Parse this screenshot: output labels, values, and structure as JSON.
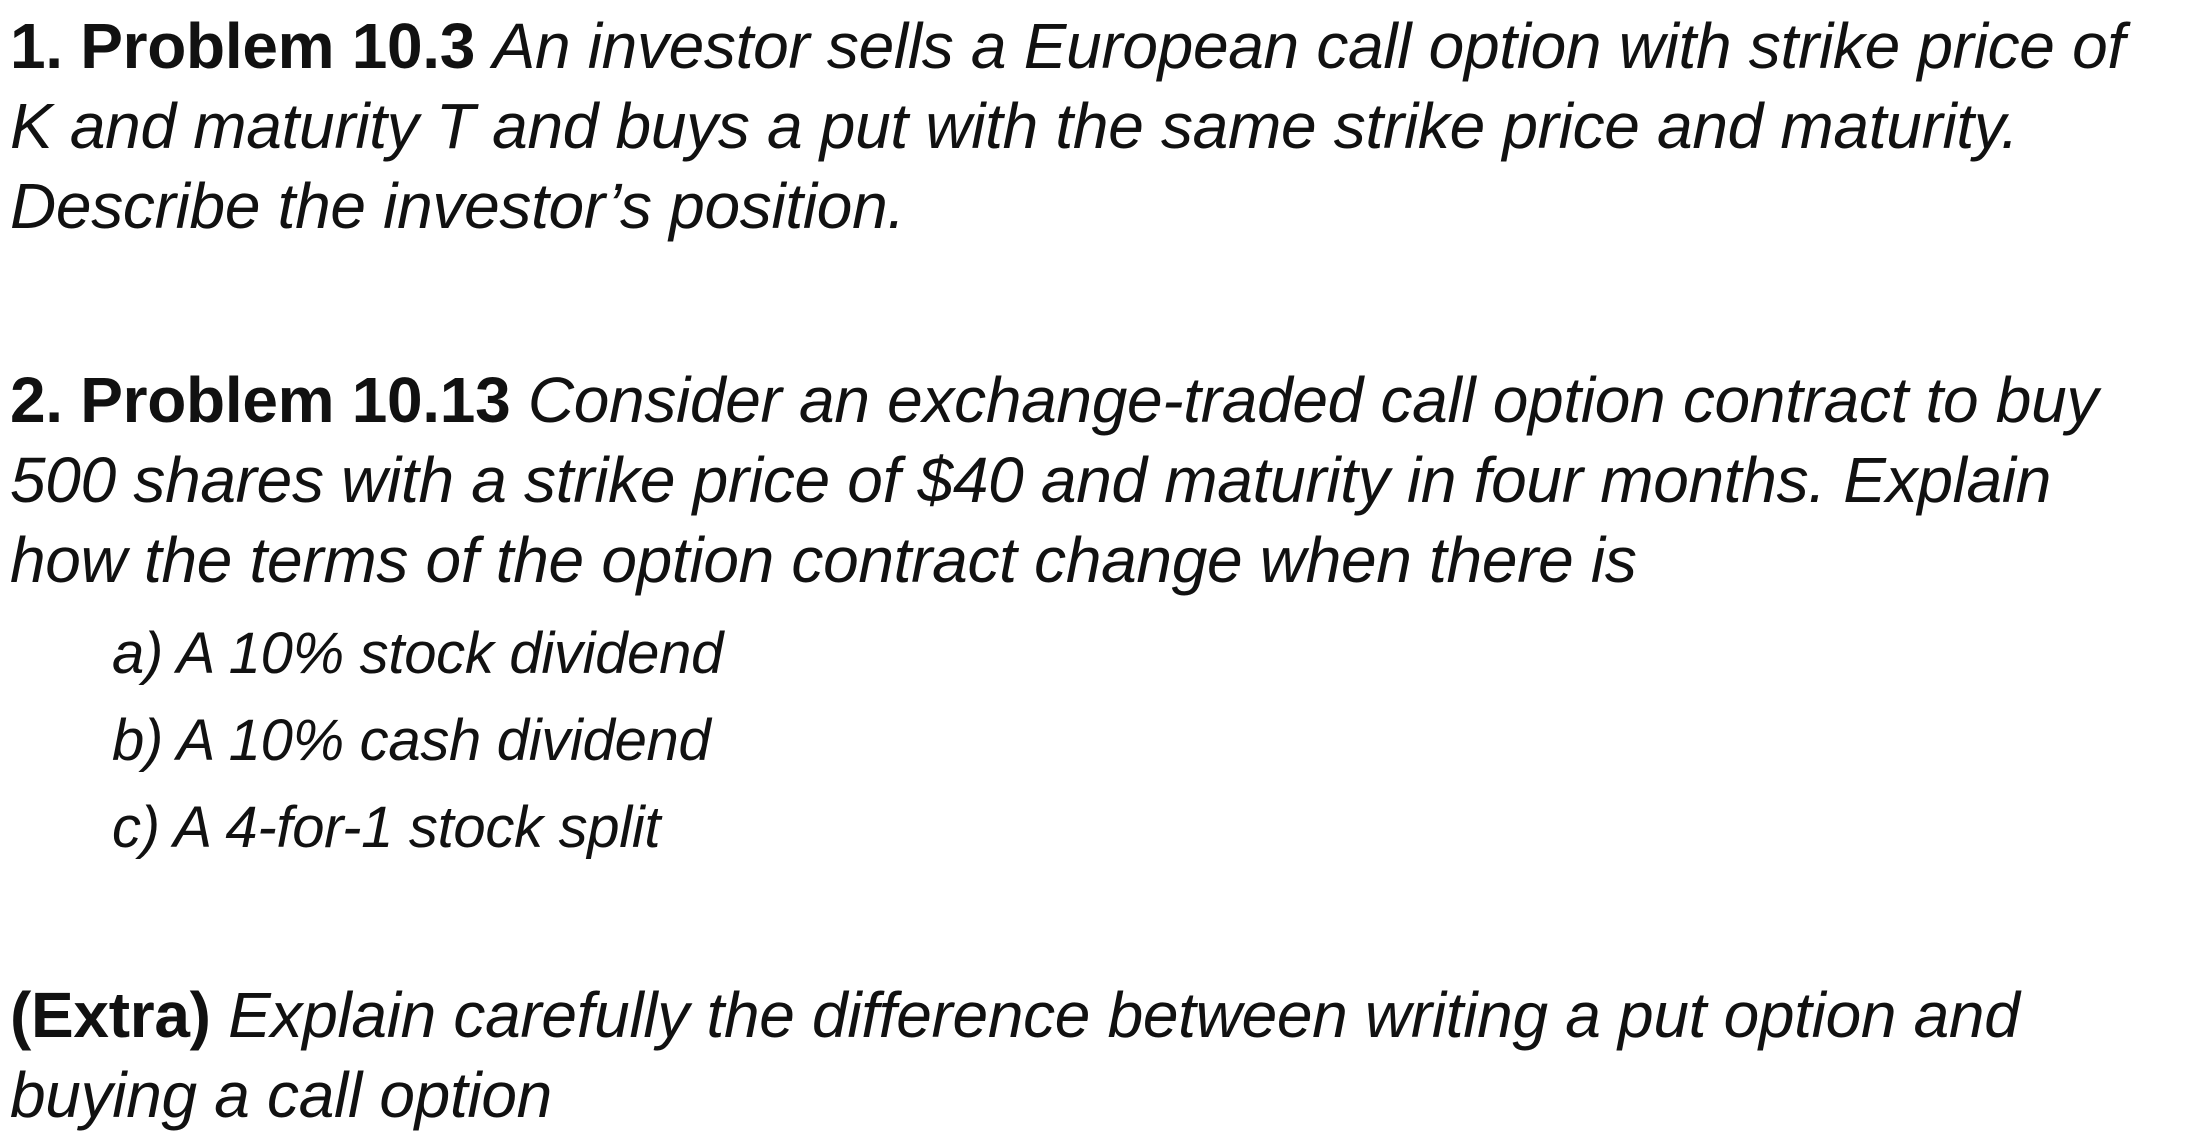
{
  "problems": [
    {
      "label": "1. Problem 10.3",
      "text": "An investor sells a European call option with strike price of K and maturity T and buys a put with the same strike price and maturity. Describe the investor’s position."
    },
    {
      "label": "2. Problem 10.13",
      "text": "Consider an exchange-traded call option contract to buy 500 shares with a strike price of $40 and maturity in four months. Explain how the terms of the option contract change when there is",
      "subitems": [
        "a) A 10% stock dividend",
        "b) A 10% cash dividend",
        "c) A 4-for-1 stock split"
      ]
    }
  ],
  "extra": {
    "label": "(Extra)",
    "text": "Explain carefully the difference between writing a put option and buying a call option"
  }
}
